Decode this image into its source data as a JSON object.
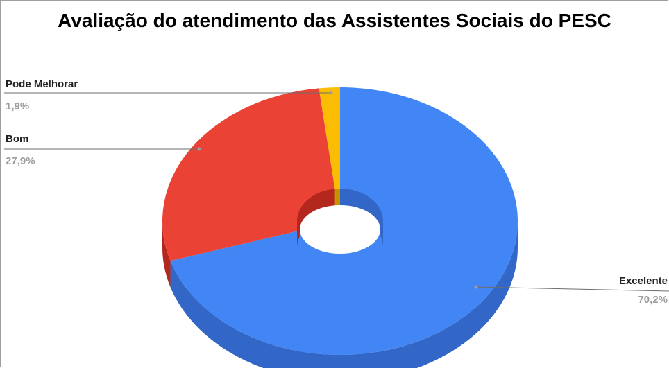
{
  "chart_data": {
    "type": "pie",
    "title": "Avaliação do atendimento das Assistentes Sociais do PESC",
    "donut": true,
    "three_d": true,
    "slices": [
      {
        "name": "Excelente",
        "value": 70.2,
        "label": "70,2%",
        "color": "#4285f4",
        "side_color": "#3367c7"
      },
      {
        "name": "Bom",
        "value": 27.9,
        "label": "27,9%",
        "color": "#ea4335",
        "side_color": "#b3271f"
      },
      {
        "name": "Pode Melhorar",
        "value": 1.9,
        "label": "1,9%",
        "color": "#fbbc04",
        "side_color": "#c79200"
      }
    ],
    "legend": "none"
  }
}
